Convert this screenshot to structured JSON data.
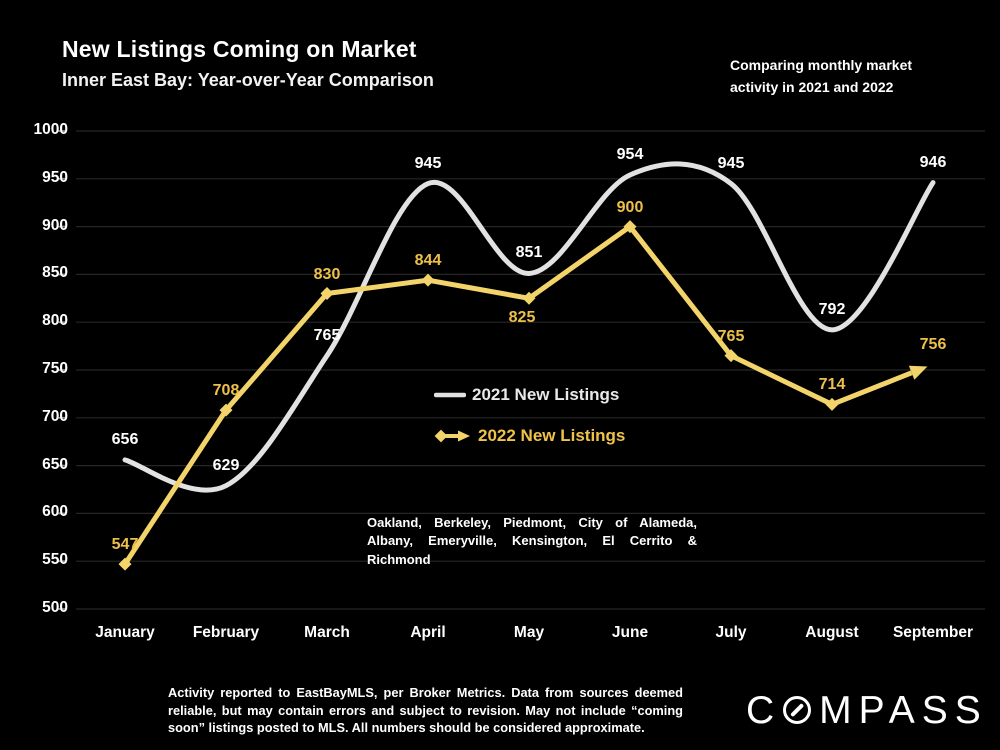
{
  "header": {
    "title": "New Listings Coming on Market",
    "subtitle": "Inner East Bay: Year-over-Year Comparison",
    "annotation": "Comparing monthly market\nactivity in 2021 and 2022"
  },
  "chart_data": {
    "type": "line",
    "title": "New Listings Coming on Market",
    "categories": [
      "January",
      "February",
      "March",
      "April",
      "May",
      "June",
      "July",
      "August",
      "September"
    ],
    "series": [
      {
        "name": "2021 New Listings",
        "color": "#e2e2e2",
        "label_color": "#ffffff",
        "style": "smooth",
        "values": [
          656,
          629,
          765,
          945,
          851,
          954,
          945,
          792,
          946
        ],
        "labels_below_indices": []
      },
      {
        "name": "2022 New Listings",
        "color": "#f3d46a",
        "label_color": "#eec04a",
        "style": "straight-diamond-arrow",
        "values": [
          547,
          708,
          830,
          844,
          825,
          900,
          765,
          714,
          756
        ],
        "labels_below_indices": [
          4
        ]
      }
    ],
    "yticks": [
      1000,
      950,
      900,
      850,
      800,
      750,
      700,
      650,
      600,
      550,
      500
    ],
    "ylim": [
      500,
      1000
    ],
    "grid": "horizontal",
    "gridline_color": "#262626",
    "tick_color": "#8a8a8a",
    "background_color": "#000000",
    "legend_position": "center-right-of-plot"
  },
  "notes": {
    "coverage": "Oakland, Berkeley, Piedmont, City of Alameda, Albany, Emeryville, Kensington, El Cerrito & Richmond",
    "disclaimer": "Activity reported to EastBayMLS, per Broker Metrics. Data from sources deemed reliable, but may contain errors and subject to revision. May not include “coming soon” listings posted to MLS. All numbers should be considered approximate."
  },
  "logo": {
    "full_name": "COMPASS",
    "first_letter": "C",
    "rest": "MPASS"
  }
}
